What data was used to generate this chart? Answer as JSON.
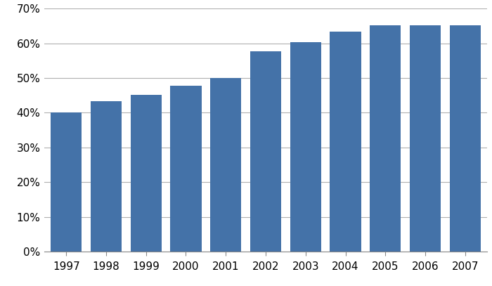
{
  "years": [
    1997,
    1998,
    1999,
    2000,
    2001,
    2002,
    2003,
    2004,
    2005,
    2006,
    2007
  ],
  "values": [
    0.401,
    0.433,
    0.452,
    0.478,
    0.501,
    0.578,
    0.603,
    0.633,
    0.652,
    0.652,
    0.652
  ],
  "bar_color": "#4472a8",
  "ylim": [
    0,
    0.7
  ],
  "yticks": [
    0.0,
    0.1,
    0.2,
    0.3,
    0.4,
    0.5,
    0.6,
    0.7
  ],
  "background_color": "#ffffff",
  "grid_color": "#b0b0b0",
  "bar_width": 0.78,
  "tick_fontsize": 11,
  "xlabel_fontsize": 11
}
